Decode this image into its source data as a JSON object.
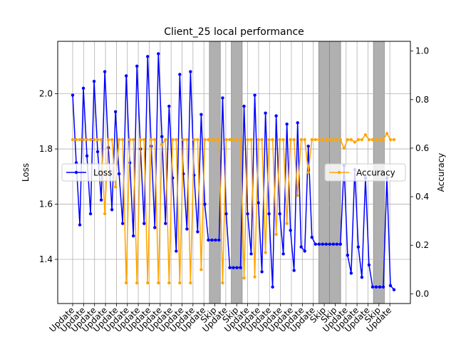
{
  "chart_data": {
    "type": "line",
    "title": "Client_25 local performance",
    "ylabel_left": "Loss",
    "ylabel_right": "Accuracy",
    "ylim_left": [
      1.24,
      2.19
    ],
    "ylim_right": [
      -0.04,
      1.04
    ],
    "yticks_left": [
      "1.4",
      "1.6",
      "1.8",
      "2.0"
    ],
    "yticks_right": [
      "0.0",
      "0.2",
      "0.4",
      "0.6",
      "0.8",
      "1.0"
    ],
    "grid": true,
    "skip_shading_color": "#b0b0b0",
    "rounds": [
      {
        "label": "Update",
        "skip": false
      },
      {
        "label": "Update",
        "skip": false
      },
      {
        "label": "Update",
        "skip": false
      },
      {
        "label": "Update",
        "skip": false
      },
      {
        "label": "Update",
        "skip": false
      },
      {
        "label": "Update",
        "skip": false
      },
      {
        "label": "Update",
        "skip": false
      },
      {
        "label": "Update",
        "skip": false
      },
      {
        "label": "Update",
        "skip": false
      },
      {
        "label": "Update",
        "skip": false
      },
      {
        "label": "Update",
        "skip": false
      },
      {
        "label": "Update",
        "skip": false
      },
      {
        "label": "Update",
        "skip": false
      },
      {
        "label": "Skip",
        "skip": true
      },
      {
        "label": "Update",
        "skip": false
      },
      {
        "label": "Skip",
        "skip": true
      },
      {
        "label": "Update",
        "skip": false
      },
      {
        "label": "Update",
        "skip": false
      },
      {
        "label": "Update",
        "skip": false
      },
      {
        "label": "Update",
        "skip": false
      },
      {
        "label": "Update",
        "skip": false
      },
      {
        "label": "Update",
        "skip": false
      },
      {
        "label": "Update",
        "skip": false
      },
      {
        "label": "Skip",
        "skip": true
      },
      {
        "label": "Skip",
        "skip": true
      },
      {
        "label": "Update",
        "skip": false
      },
      {
        "label": "Update",
        "skip": false
      },
      {
        "label": "Update",
        "skip": false
      },
      {
        "label": "Skip",
        "skip": true
      },
      {
        "label": "Update",
        "skip": false
      }
    ],
    "series": [
      {
        "name": "Loss",
        "axis": "left",
        "color": "#0000ff",
        "points": [
          [
            0,
            1.995
          ],
          [
            0.25,
            1.75
          ],
          [
            0.5,
            1.525
          ],
          [
            0.75,
            2.02
          ],
          [
            1,
            1.775
          ],
          [
            1.25,
            1.565
          ],
          [
            1.5,
            2.045
          ],
          [
            1.75,
            1.79
          ],
          [
            2,
            1.615
          ],
          [
            2.25,
            2.08
          ],
          [
            2.5,
            1.805
          ],
          [
            2.75,
            1.58
          ],
          [
            3,
            1.935
          ],
          [
            3.25,
            1.71
          ],
          [
            3.5,
            1.53
          ],
          [
            3.75,
            2.065
          ],
          [
            4,
            1.75
          ],
          [
            4.25,
            1.485
          ],
          [
            4.5,
            2.1
          ],
          [
            4.75,
            1.8
          ],
          [
            5,
            1.53
          ],
          [
            5.25,
            2.135
          ],
          [
            5.5,
            1.81
          ],
          [
            5.75,
            1.515
          ],
          [
            6,
            2.145
          ],
          [
            6.25,
            1.845
          ],
          [
            6.5,
            1.53
          ],
          [
            6.75,
            1.955
          ],
          [
            7,
            1.695
          ],
          [
            7.25,
            1.43
          ],
          [
            7.5,
            2.07
          ],
          [
            7.75,
            1.71
          ],
          [
            8,
            1.51
          ],
          [
            8.25,
            2.08
          ],
          [
            8.5,
            1.705
          ],
          [
            8.75,
            1.5
          ],
          [
            9,
            1.925
          ],
          [
            9.25,
            1.6
          ],
          [
            9.5,
            1.47
          ],
          [
            9.75,
            1.47
          ],
          [
            10,
            1.47
          ],
          [
            10.25,
            1.47
          ],
          [
            10.5,
            1.985
          ],
          [
            10.75,
            1.565
          ],
          [
            11,
            1.37
          ],
          [
            11.25,
            1.37
          ],
          [
            11.5,
            1.37
          ],
          [
            11.75,
            1.37
          ],
          [
            12,
            1.955
          ],
          [
            12.25,
            1.565
          ],
          [
            12.5,
            1.42
          ],
          [
            12.75,
            1.995
          ],
          [
            13,
            1.605
          ],
          [
            13.25,
            1.355
          ],
          [
            13.5,
            1.93
          ],
          [
            13.75,
            1.565
          ],
          [
            14,
            1.3
          ],
          [
            14.25,
            1.92
          ],
          [
            14.5,
            1.565
          ],
          [
            14.75,
            1.42
          ],
          [
            15,
            1.89
          ],
          [
            15.25,
            1.505
          ],
          [
            15.5,
            1.36
          ],
          [
            15.75,
            1.895
          ],
          [
            16,
            1.445
          ],
          [
            16.25,
            1.43
          ],
          [
            16.5,
            1.81
          ],
          [
            16.75,
            1.48
          ],
          [
            17,
            1.455
          ],
          [
            17.25,
            1.455
          ],
          [
            17.5,
            1.455
          ],
          [
            17.75,
            1.455
          ],
          [
            18,
            1.455
          ],
          [
            18.25,
            1.455
          ],
          [
            18.5,
            1.455
          ],
          [
            18.75,
            1.455
          ],
          [
            19,
            1.74
          ],
          [
            19.25,
            1.415
          ],
          [
            19.5,
            1.35
          ],
          [
            19.75,
            1.725
          ],
          [
            20,
            1.445
          ],
          [
            20.25,
            1.335
          ],
          [
            20.5,
            1.695
          ],
          [
            20.75,
            1.38
          ],
          [
            21,
            1.3
          ],
          [
            21.25,
            1.3
          ],
          [
            21.5,
            1.3
          ],
          [
            21.75,
            1.3
          ],
          [
            22,
            1.695
          ],
          [
            22.25,
            1.305
          ],
          [
            22.5,
            1.29
          ]
        ]
      },
      {
        "name": "Accuracy",
        "axis": "right",
        "color": "#ffa500",
        "points": [
          [
            0,
            0.635
          ],
          [
            0.25,
            0.635
          ],
          [
            0.5,
            0.635
          ],
          [
            0.75,
            0.635
          ],
          [
            1,
            0.635
          ],
          [
            1.25,
            0.635
          ],
          [
            1.5,
            0.635
          ],
          [
            1.75,
            0.635
          ],
          [
            2,
            0.635
          ],
          [
            2.25,
            0.33
          ],
          [
            2.5,
            0.635
          ],
          [
            2.75,
            0.635
          ],
          [
            3,
            0.44
          ],
          [
            3.25,
            0.635
          ],
          [
            3.5,
            0.635
          ],
          [
            3.75,
            0.045
          ],
          [
            4,
            0.635
          ],
          [
            4.25,
            0.635
          ],
          [
            4.5,
            0.045
          ],
          [
            4.75,
            0.635
          ],
          [
            5,
            0.635
          ],
          [
            5.25,
            0.045
          ],
          [
            5.5,
            0.635
          ],
          [
            5.75,
            0.635
          ],
          [
            6,
            0.045
          ],
          [
            6.25,
            0.615
          ],
          [
            6.5,
            0.635
          ],
          [
            6.75,
            0.045
          ],
          [
            7,
            0.635
          ],
          [
            7.25,
            0.635
          ],
          [
            7.5,
            0.045
          ],
          [
            7.75,
            0.635
          ],
          [
            8,
            0.635
          ],
          [
            8.25,
            0.045
          ],
          [
            8.5,
            0.635
          ],
          [
            8.75,
            0.635
          ],
          [
            9,
            0.1
          ],
          [
            9.25,
            0.635
          ],
          [
            9.5,
            0.635
          ],
          [
            9.75,
            0.635
          ],
          [
            10,
            0.635
          ],
          [
            10.25,
            0.635
          ],
          [
            10.5,
            0.045
          ],
          [
            10.75,
            0.635
          ],
          [
            11,
            0.635
          ],
          [
            11.25,
            0.635
          ],
          [
            11.5,
            0.635
          ],
          [
            11.75,
            0.635
          ],
          [
            12,
            0.065
          ],
          [
            12.25,
            0.635
          ],
          [
            12.5,
            0.635
          ],
          [
            12.75,
            0.07
          ],
          [
            13,
            0.635
          ],
          [
            13.25,
            0.635
          ],
          [
            13.5,
            0.17
          ],
          [
            13.75,
            0.635
          ],
          [
            14,
            0.635
          ],
          [
            14.25,
            0.245
          ],
          [
            14.5,
            0.635
          ],
          [
            14.75,
            0.635
          ],
          [
            15,
            0.29
          ],
          [
            15.25,
            0.635
          ],
          [
            15.5,
            0.635
          ],
          [
            15.75,
            0.405
          ],
          [
            16,
            0.635
          ],
          [
            16.25,
            0.635
          ],
          [
            16.5,
            0.5
          ],
          [
            16.75,
            0.635
          ],
          [
            17,
            0.635
          ],
          [
            17.25,
            0.635
          ],
          [
            17.5,
            0.635
          ],
          [
            17.75,
            0.635
          ],
          [
            18,
            0.635
          ],
          [
            18.25,
            0.635
          ],
          [
            18.5,
            0.635
          ],
          [
            18.75,
            0.635
          ],
          [
            19,
            0.6
          ],
          [
            19.25,
            0.635
          ],
          [
            19.5,
            0.635
          ],
          [
            19.75,
            0.625
          ],
          [
            20,
            0.635
          ],
          [
            20.25,
            0.635
          ],
          [
            20.5,
            0.655
          ],
          [
            20.75,
            0.635
          ],
          [
            21,
            0.635
          ],
          [
            21.25,
            0.635
          ],
          [
            21.5,
            0.635
          ],
          [
            21.75,
            0.635
          ],
          [
            22,
            0.66
          ],
          [
            22.25,
            0.635
          ],
          [
            22.5,
            0.635
          ]
        ]
      }
    ],
    "legends": [
      {
        "series": "Loss",
        "placement": "center-left"
      },
      {
        "series": "Accuracy",
        "placement": "center-right"
      }
    ]
  }
}
